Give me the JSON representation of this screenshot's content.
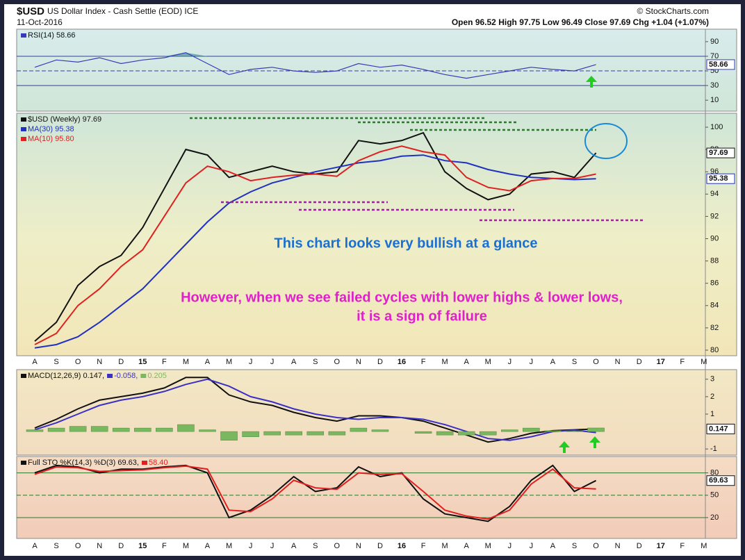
{
  "header": {
    "symbol": "$USD",
    "name": "US Dollar Index - Cash Settle (EOD) ICE",
    "date": "11-Oct-2016",
    "quote": "Open 96.52  High 97.75  Low 96.49  Close 97.69  Chg +1.04 (+1.07%)",
    "source": "© StockCharts.com"
  },
  "chart_data": [
    {
      "type": "line",
      "series": [
        {
          "name": "RSI(14) 58.66",
          "color": "#3a3ab8",
          "fill": "#5a9aa8",
          "tag": true,
          "values": [
            55,
            65,
            62,
            68,
            60,
            65,
            68,
            75,
            60,
            45,
            52,
            55,
            50,
            48,
            50,
            60,
            55,
            58,
            52,
            45,
            40,
            45,
            50,
            55,
            52,
            50,
            58.66,
            null,
            null,
            null,
            null,
            null
          ]
        }
      ],
      "ylim": [
        -5,
        107
      ],
      "yticks": [
        90,
        70,
        50,
        30,
        10
      ],
      "hlines": [
        70,
        50,
        30
      ]
    },
    {
      "type": "line",
      "categories": [
        "A",
        "S",
        "O",
        "N",
        "D",
        "15",
        "F",
        "M",
        "A",
        "M",
        "J",
        "J",
        "A",
        "S",
        "O",
        "N",
        "D",
        "16",
        "F",
        "M",
        "A",
        "M",
        "J",
        "J",
        "A",
        "S",
        "O",
        "N",
        "D",
        "17",
        "F",
        "M"
      ],
      "series": [
        {
          "name": "$USD (Weekly) 97.69",
          "color": "#111111",
          "tag": true,
          "values": [
            80.8,
            82.5,
            85.8,
            87.5,
            88.5,
            91,
            94.5,
            98,
            97.5,
            95.5,
            96,
            96.5,
            96,
            95.8,
            96,
            98.8,
            98.5,
            98.8,
            99.5,
            96,
            94.5,
            93.5,
            94,
            95.8,
            96,
            95.5,
            97.69,
            null,
            null,
            null,
            null,
            null
          ]
        },
        {
          "name": "MA(30) 95.38",
          "color": "#2030c0",
          "tag": true,
          "values": [
            80.2,
            80.5,
            81.2,
            82.5,
            84,
            85.5,
            87.5,
            89.5,
            91.5,
            93.2,
            94.2,
            95,
            95.5,
            96,
            96.4,
            96.8,
            97,
            97.4,
            97.5,
            97,
            96.8,
            96.2,
            95.8,
            95.5,
            95.4,
            95.3,
            95.38,
            null,
            null,
            null,
            null,
            null
          ]
        },
        {
          "name": "MA(10) 95.80",
          "color": "#e02020",
          "values": [
            80.5,
            81.5,
            84,
            85.5,
            87.5,
            89,
            92,
            95,
            96.5,
            96,
            95.2,
            95.5,
            95.7,
            95.8,
            95.6,
            97,
            97.8,
            98.3,
            97.8,
            97.5,
            95.5,
            94.6,
            94.3,
            95.2,
            95.4,
            95.4,
            95.8,
            null,
            null,
            null,
            null,
            null
          ]
        }
      ],
      "ylim": [
        79.5,
        101.25
      ],
      "yticks": [
        80,
        82,
        84,
        86,
        88,
        90,
        92,
        94,
        96,
        98,
        100
      ],
      "annotations": [
        "This chart looks very bullish at a glance",
        "However, when we see failed cycles with lower highs & lower lows,",
        "it is a sign of failure"
      ]
    },
    {
      "type": "line",
      "series": [
        {
          "name": "MACD(12,26,9) 0.147,",
          "color": "#111111",
          "tag": true,
          "values": [
            0.2,
            0.7,
            1.3,
            1.8,
            2.0,
            2.2,
            2.5,
            3.1,
            3.1,
            2.1,
            1.7,
            1.5,
            1.1,
            0.8,
            0.6,
            0.9,
            0.9,
            0.8,
            0.6,
            0.2,
            -0.2,
            -0.6,
            -0.4,
            -0.1,
            0.05,
            0.1,
            0.147,
            null,
            null,
            null,
            null,
            null
          ]
        },
        {
          "name": "-0.058,",
          "color": "#3a30c8",
          "values": [
            0.1,
            0.5,
            1.0,
            1.5,
            1.8,
            2.0,
            2.3,
            2.7,
            3.0,
            2.6,
            2.0,
            1.7,
            1.3,
            1.0,
            0.8,
            0.7,
            0.8,
            0.8,
            0.7,
            0.4,
            0.0,
            -0.4,
            -0.5,
            -0.3,
            0.0,
            0.08,
            -0.058,
            null,
            null,
            null,
            null,
            null
          ]
        },
        {
          "name": "0.205",
          "color": "#7ab860",
          "kind": "bar",
          "values": [
            0.1,
            0.2,
            0.3,
            0.3,
            0.2,
            0.2,
            0.2,
            0.4,
            0.1,
            -0.5,
            -0.3,
            -0.2,
            -0.2,
            -0.2,
            -0.2,
            0.2,
            0.1,
            0.0,
            -0.1,
            -0.2,
            -0.2,
            -0.2,
            0.1,
            0.2,
            0.05,
            0.02,
            0.205,
            null,
            null,
            null,
            null,
            null
          ]
        }
      ],
      "ylim": [
        -1.35,
        3.55
      ],
      "yticks": [
        3,
        2,
        1,
        -1
      ]
    },
    {
      "type": "line",
      "categories": [
        "A",
        "S",
        "O",
        "N",
        "D",
        "15",
        "F",
        "M",
        "A",
        "M",
        "J",
        "J",
        "A",
        "S",
        "O",
        "N",
        "D",
        "16",
        "F",
        "M",
        "A",
        "M",
        "J",
        "J",
        "A",
        "S",
        "O",
        "N",
        "D",
        "17",
        "F",
        "M"
      ],
      "series": [
        {
          "name": "Full STO %K(14,3) %D(3) 69.63,",
          "color": "#111111",
          "tag": true,
          "values": [
            80,
            90,
            88,
            80,
            85,
            85,
            88,
            90,
            80,
            20,
            30,
            50,
            75,
            55,
            60,
            88,
            75,
            80,
            45,
            25,
            20,
            15,
            35,
            70,
            90,
            55,
            69.63,
            null,
            null,
            null,
            null,
            null
          ]
        },
        {
          "name": "58.40",
          "color": "#e02020",
          "values": [
            78,
            88,
            87,
            82,
            83,
            84,
            87,
            89,
            85,
            30,
            28,
            45,
            70,
            60,
            58,
            80,
            78,
            79,
            55,
            30,
            22,
            18,
            30,
            65,
            85,
            60,
            58.4,
            null,
            null,
            null,
            null,
            null
          ]
        }
      ],
      "ylim": [
        -8,
        102
      ],
      "yticks": [
        80,
        50,
        20
      ],
      "hlines": [
        80,
        50,
        20
      ]
    }
  ]
}
